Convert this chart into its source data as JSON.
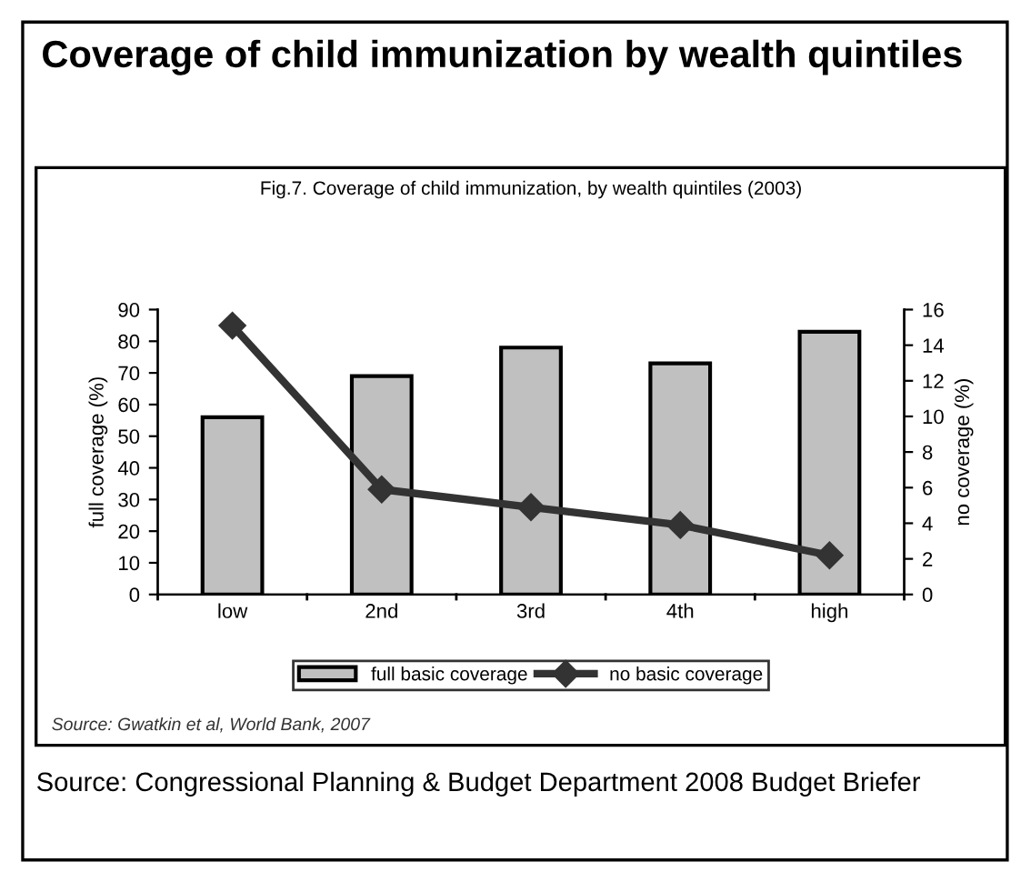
{
  "chart_data": {
    "type": "bar",
    "title": "Coverage of child immunization by wealth quintiles",
    "subtitle": "Fig.7. Coverage of child immunization, by wealth quintiles (2003)",
    "categories": [
      "low",
      "2nd",
      "3rd",
      "4th",
      "high"
    ],
    "series": [
      {
        "name": "full basic coverage",
        "color": "#c0c0c0",
        "values": [
          56,
          69,
          78,
          73,
          83
        ]
      },
      {
        "name": "no basic coverage",
        "type": "line",
        "axis": "y2",
        "color": "#333333",
        "marker": "diamond",
        "values": [
          15.1,
          5.9,
          4.9,
          3.9,
          2.2
        ]
      }
    ],
    "ylabel": "full coverage (%)",
    "y2label": "no coverage (%)",
    "ylim": [
      0,
      90
    ],
    "yticks": [
      0,
      10,
      20,
      30,
      40,
      50,
      60,
      70,
      80,
      90
    ],
    "y2lim": [
      0,
      16
    ],
    "y2ticks": [
      0,
      2,
      4,
      6,
      8,
      10,
      12,
      14,
      16
    ],
    "grid": false,
    "legend": "bottom",
    "annotations": [
      "Source: Gwatkin et al, World Bank, 2007",
      "Source: Congressional Planning & Budget Department 2008 Budget Briefer"
    ]
  }
}
